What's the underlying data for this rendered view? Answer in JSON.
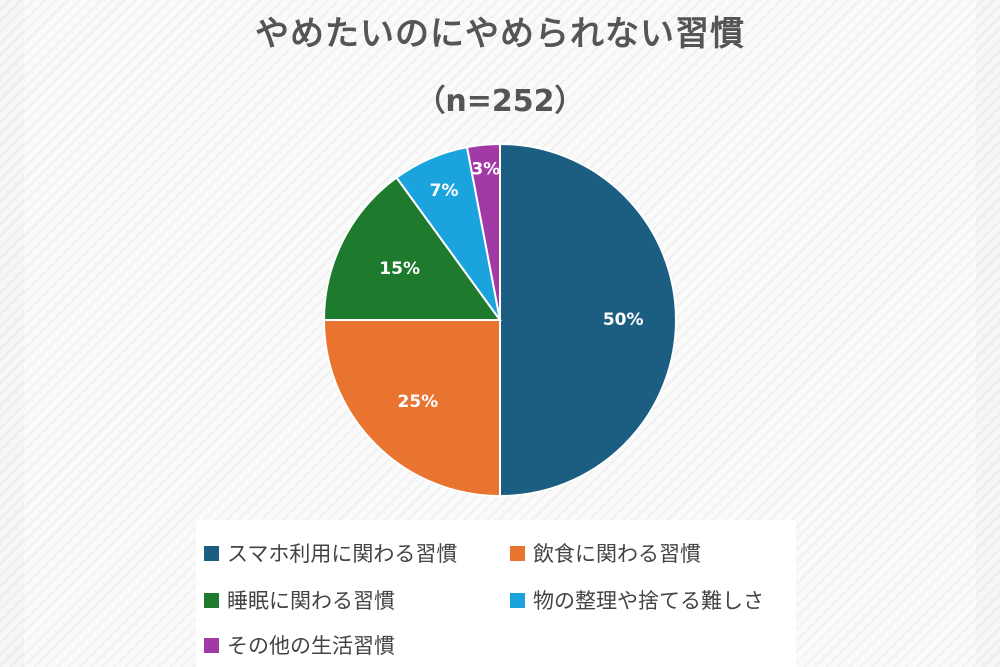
{
  "chart_data": {
    "type": "pie",
    "title": "やめたいのにやめられない習慣",
    "subtitle": "（n=252）",
    "slices": [
      {
        "label": "スマホ利用に関わる習慣",
        "value": 50,
        "value_label": "50%",
        "color": "#1b5e82"
      },
      {
        "label": "飲食に関わる習慣",
        "value": 25,
        "value_label": "25%",
        "color": "#e8742f"
      },
      {
        "label": "睡眠に関わる習慣",
        "value": 15,
        "value_label": "15%",
        "color": "#1e7a2c"
      },
      {
        "label": "物の整理や捨てる難しさ",
        "value": 7,
        "value_label": "7%",
        "color": "#1aa3dc"
      },
      {
        "label": "その他の生活習慣",
        "value": 3,
        "value_label": "3%",
        "color": "#a23aa6"
      }
    ],
    "legend_position": "bottom"
  }
}
